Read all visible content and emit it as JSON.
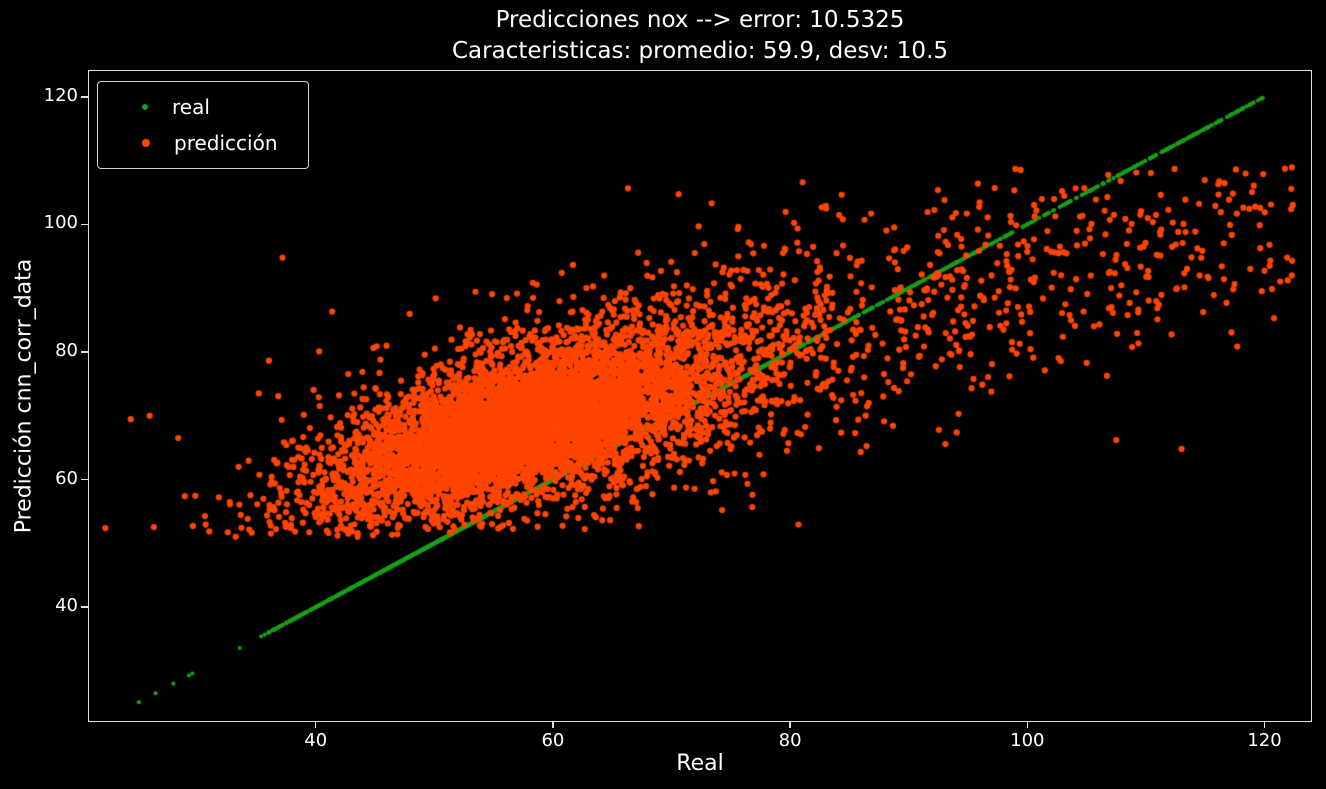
{
  "figure": {
    "background": "#000000",
    "text_color": "#ffffff",
    "spine_color": "#e0e0e0"
  },
  "chart_data": {
    "type": "scatter",
    "title": "Predicciones nox --> error: 10.5325",
    "subtitle": "Caracteristicas: promedio: 59.9, desv: 10.5",
    "xlabel": "Real",
    "ylabel": "Predicción cnn_corr_data",
    "xlim": [
      20.8,
      124.0
    ],
    "ylim": [
      22.0,
      124.2
    ],
    "xticks": [
      40,
      60,
      80,
      100,
      120
    ],
    "yticks": [
      40,
      60,
      80,
      100,
      120
    ],
    "grid": false,
    "seed": 20,
    "stats": {
      "error": 10.5325,
      "promedio": 59.9,
      "desv": 10.5
    },
    "legend": {
      "position": "upper-left",
      "entries": [
        {
          "label": "real",
          "color": "#18a018",
          "marker_px": 6
        },
        {
          "label": "predicción",
          "color": "#ff4500",
          "marker_px": 8
        }
      ]
    },
    "series": [
      {
        "name": "real",
        "color": "#18a018",
        "marker_radius_px": 2.1,
        "kind": "identity",
        "components": [
          {
            "dist": "normal",
            "count": 2600,
            "mean": 59.9,
            "std": 10.5,
            "min": 36,
            "max": 104
          },
          {
            "dist": "uniform",
            "count": 420,
            "min": 76,
            "max": 120.3
          },
          {
            "dist": "uniform",
            "count": 26,
            "min": 36,
            "max": 39.5
          },
          {
            "dist": "list",
            "x": [
              25.1,
              26.5,
              28.0,
              29.3,
              29.6,
              33.6,
              35.4,
              35.7,
              36.0,
              36.5,
              37.6,
              38.0,
              38.3
            ]
          }
        ]
      },
      {
        "name": "predicción",
        "color": "#ff4500",
        "marker_radius_px": 3.1,
        "kind": "cloud",
        "trend": {
          "slope": 0.55,
          "intercept": 37.0
        },
        "y_min_clip": 51.0,
        "y_max_clip": 109.0,
        "clusters": [
          {
            "count": 5200,
            "x_dist": "normal",
            "x_mean": 57.5,
            "x_std": 8.0,
            "y_noise": 5.2
          },
          {
            "count": 1500,
            "x_dist": "normal",
            "x_mean": 62.0,
            "x_std": 11.0,
            "y_noise": 8.0
          },
          {
            "count": 500,
            "x_dist": "normal",
            "x_mean": 72.0,
            "x_std": 13.0,
            "y_noise": 11.0
          },
          {
            "count": 330,
            "x_dist": "uniform",
            "x_min": 88.0,
            "x_max": 122.5,
            "y_noise": 8.5
          },
          {
            "count": 60,
            "x_dist": "uniform",
            "x_min": 36.0,
            "x_max": 50.0,
            "y_noise": 7.0
          }
        ],
        "outliers": [
          [
            26.0,
            70.0
          ],
          [
            28.4,
            66.5
          ],
          [
            37.2,
            94.8
          ],
          [
            107.5,
            66.2
          ],
          [
            113.0,
            64.8
          ],
          [
            122.3,
            92.0
          ],
          [
            120.8,
            85.3
          ],
          [
            35.2,
            73.5
          ],
          [
            33.5,
            62.0
          ]
        ]
      }
    ]
  }
}
